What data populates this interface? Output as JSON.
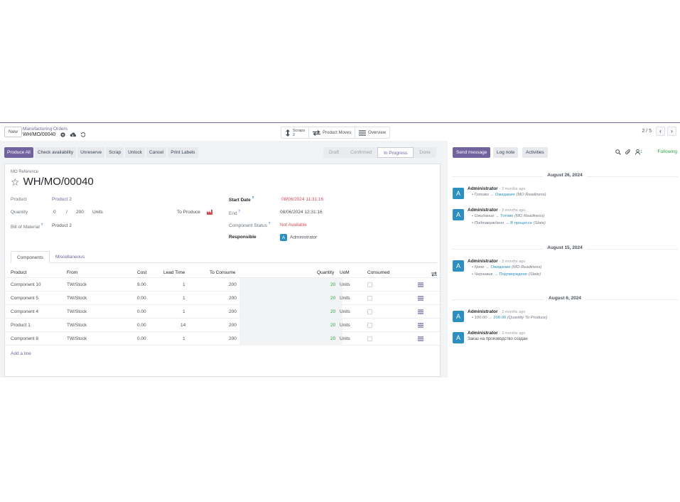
{
  "topbar": {
    "new_label": "New",
    "breadcrumb_parent": "Manufacturing Orders",
    "breadcrumb_current": "WH/MO/00040",
    "smart_buttons": {
      "scraps_label": "Scraps",
      "scraps_count": "2",
      "product_moves_label": "Product Moves",
      "overview_label": "Overview"
    },
    "pager_value": "2 / 5"
  },
  "actions": {
    "produce_all": "Produce All",
    "check_availability": "Check availability",
    "unreserve": "Unreserve",
    "scrap": "Scrap",
    "unlock": "Unlock",
    "cancel": "Cancel",
    "print_labels": "Print Labels"
  },
  "status": {
    "stages": [
      "Draft",
      "Confirmed",
      "In Progress",
      "Done"
    ],
    "active": "In Progress"
  },
  "form": {
    "mo_reference_label": "MO Reference",
    "mo_reference": "WH/MO/00040",
    "product_label": "Product",
    "product_value": "Product 2",
    "quantity_label": "Quantity",
    "quantity_done": "0",
    "quantity_sep": "/",
    "quantity_total": "200",
    "quantity_uom": "Units",
    "to_produce_label": "To Produce",
    "bom_label": "Bill of Material",
    "bom_value": "Product 2",
    "start_date_label": "Start Date",
    "start_date_value": "08/06/2024 11:31:16",
    "end_label": "End",
    "end_value": "08/06/2024 12:31:16",
    "component_status_label": "Component Status",
    "component_status_value": "Not Available",
    "responsible_label": "Responsible",
    "responsible_initial": "A",
    "responsible_value": "Administrator",
    "help_mark": "?"
  },
  "tabs": [
    "Components",
    "Miscellaneous"
  ],
  "components_table": {
    "headers": [
      "Product",
      "From",
      "Cost",
      "Lead Time",
      "To Consume",
      "Quantity",
      "UoM",
      "Consumed"
    ],
    "rows": [
      {
        "product": "Component 10",
        "from": "TW/Stock",
        "cost": "9.00",
        "lead_time": "1",
        "to_consume": "200",
        "quantity": "20",
        "uom": "Units"
      },
      {
        "product": "Component 5",
        "from": "TW/Stock",
        "cost": "0.00",
        "lead_time": "1",
        "to_consume": "200",
        "quantity": "20",
        "uom": "Units"
      },
      {
        "product": "Component 4",
        "from": "TW/Stock",
        "cost": "0.00",
        "lead_time": "1",
        "to_consume": "200",
        "quantity": "20",
        "uom": "Units"
      },
      {
        "product": "Product 1",
        "from": "TW/Stock",
        "cost": "0.00",
        "lead_time": "14",
        "to_consume": "200",
        "quantity": "20",
        "uom": "Units"
      },
      {
        "product": "Component 8",
        "from": "TW/Stock",
        "cost": "0.00",
        "lead_time": "1",
        "to_consume": "200",
        "quantity": "20",
        "uom": "Units"
      }
    ],
    "add_line": "Add a line"
  },
  "chatter": {
    "send_message": "Send message",
    "log_note": "Log note",
    "activities": "Activities",
    "follower_count": "1",
    "following": "Following",
    "dates": [
      "August 26, 2024",
      "August 15, 2024",
      "August 6, 2024"
    ],
    "messages": [
      {
        "initial": "A",
        "author": "Administrator",
        "ago": "- 3 months ago",
        "changes": [
          {
            "old": "Готово",
            "new": "Ожидание",
            "field": "(MO Readiness)"
          }
        ]
      },
      {
        "initial": "A",
        "author": "Administrator",
        "ago": "- 3 months ago",
        "changes": [
          {
            "old": "Ожидание",
            "new": "Готово",
            "field": "(MO Readiness)"
          },
          {
            "old": "Подтверждено",
            "new": "В процессе",
            "field": "(State)"
          }
        ]
      },
      {
        "initial": "A",
        "author": "Administrator",
        "ago": "- 3 months ago",
        "changes": [
          {
            "old": "None",
            "new": "Ожидание",
            "field": "(MO Readiness)"
          },
          {
            "old": "Черновик",
            "new": "Подтверждено",
            "field": "(State)"
          }
        ]
      },
      {
        "initial": "A",
        "author": "Administrator",
        "ago": "- 3 months ago",
        "changes": [
          {
            "old": "100.00",
            "new": "200.00",
            "field": "(Quantity To Produce)"
          }
        ]
      },
      {
        "initial": "A",
        "author": "Administrator",
        "ago": "- 3 months ago",
        "text": "Заказ на производство создан"
      }
    ]
  },
  "colors": {
    "brand": "#71639e",
    "link": "#2b8fbf",
    "danger": "#d44c59",
    "success": "#28a745"
  }
}
